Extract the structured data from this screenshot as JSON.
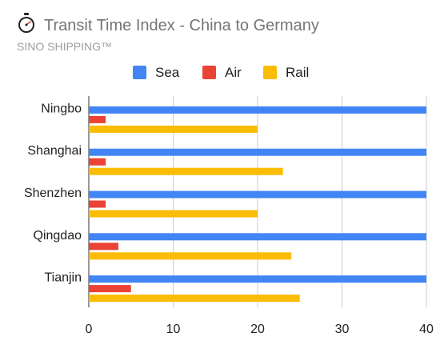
{
  "header": {
    "title": "Transit Time Index - China to Germany",
    "subtitle": "SINO SHIPPING™",
    "icon": "stopwatch-icon"
  },
  "chart_data": {
    "type": "bar",
    "orientation": "horizontal",
    "title": "Transit Time Index - China to Germany",
    "subtitle": "SINO SHIPPING™",
    "categories": [
      "Ningbo",
      "Shanghai",
      "Shenzhen",
      "Qingdao",
      "Tianjin"
    ],
    "series": [
      {
        "name": "Sea",
        "color": "#4285f4",
        "values": [
          40,
          40,
          40,
          40,
          40
        ]
      },
      {
        "name": "Air",
        "color": "#ea4335",
        "values": [
          2,
          2,
          2,
          3.5,
          5
        ]
      },
      {
        "name": "Rail",
        "color": "#fbbc04",
        "values": [
          20,
          23,
          20,
          24,
          25
        ]
      }
    ],
    "xlim": [
      0,
      40
    ],
    "x_ticks": [
      "0",
      "10",
      "20",
      "30",
      "40"
    ],
    "xlabel": "",
    "ylabel": "",
    "grid": true,
    "legend_position": "top"
  }
}
